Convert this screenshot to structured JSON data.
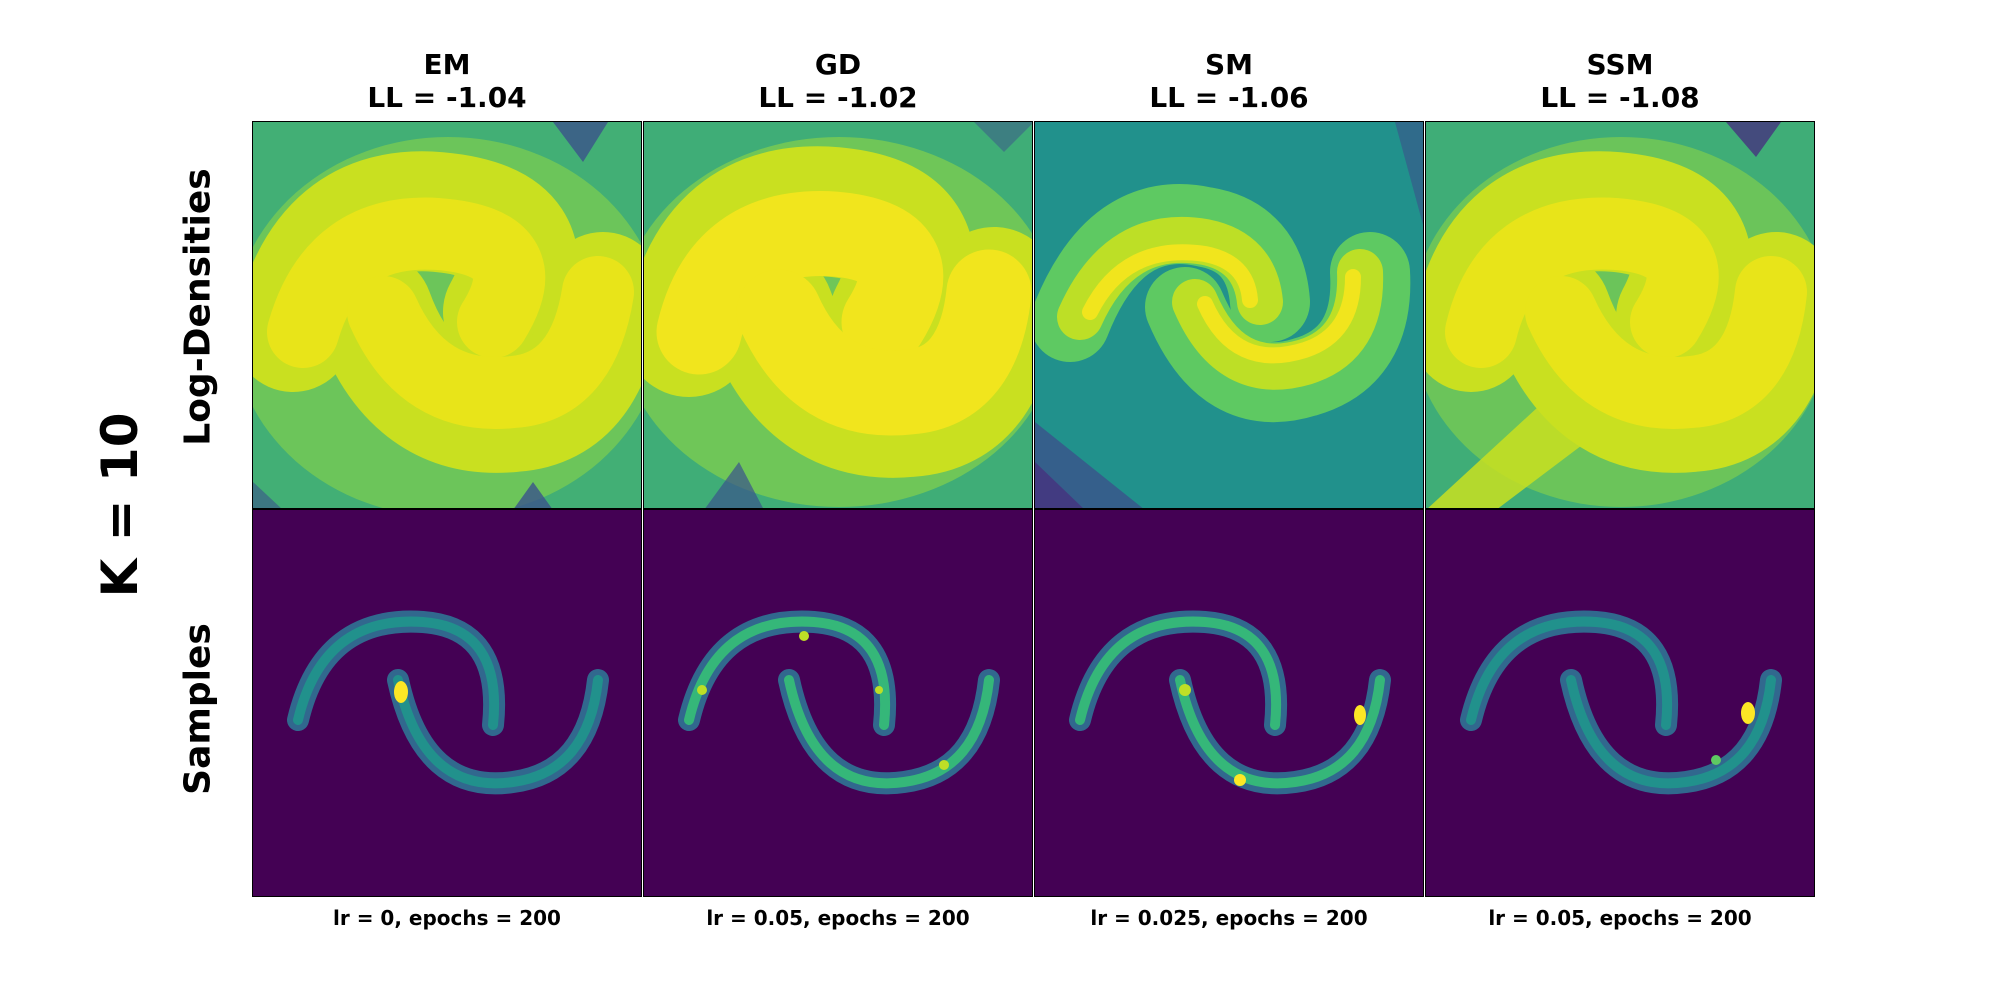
{
  "chart_data": {
    "type": "heatmap",
    "figure_label": "K = 10",
    "row_labels": [
      "Log-Densities",
      "Samples"
    ],
    "columns": [
      {
        "method": "EM",
        "ll_text": "LL = -1.04",
        "footer": "lr = 0, epochs = 200"
      },
      {
        "method": "GD",
        "ll_text": "LL = -1.02",
        "footer": "lr = 0.05, epochs = 200"
      },
      {
        "method": "SM",
        "ll_text": "LL = -1.06",
        "footer": "lr = 0.025, epochs = 200"
      },
      {
        "method": "SSM",
        "ll_text": "LL = -1.08",
        "footer": "lr = 0.05, epochs = 200"
      }
    ],
    "colormap": [
      "#440154",
      "#3b528b",
      "#21918c",
      "#5ec962",
      "#fde725"
    ]
  }
}
